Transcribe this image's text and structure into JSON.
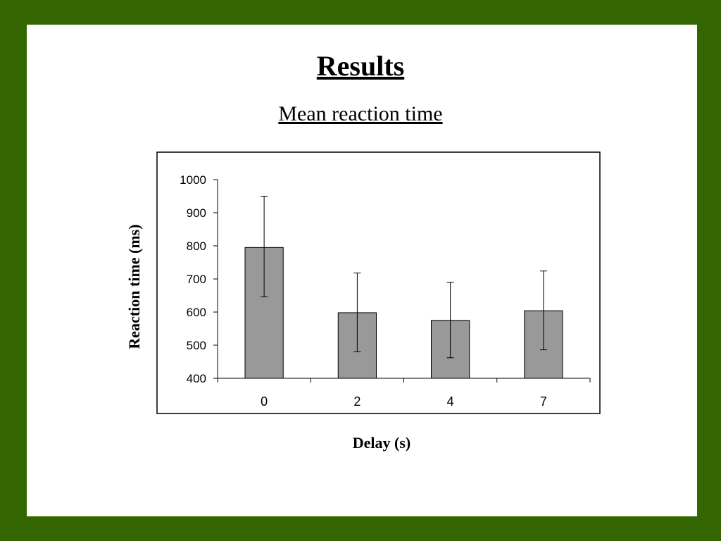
{
  "slide": {
    "title": "Results",
    "subtitle": "Mean reaction time"
  },
  "chart_data": {
    "type": "bar",
    "categories": [
      "0",
      "2",
      "4",
      "7"
    ],
    "values": [
      795,
      598,
      575,
      604
    ],
    "error_upper": [
      950,
      718,
      690,
      724
    ],
    "error_lower": [
      646,
      480,
      462,
      486
    ],
    "xlabel": "Delay (s)",
    "ylabel": "Reaction time (ms)",
    "ylim": [
      400,
      1000
    ],
    "yticks": [
      400,
      500,
      600,
      700,
      800,
      900,
      1000
    ],
    "grid": false,
    "bar_color": "#999999"
  },
  "colors": {
    "background": "#336600",
    "slide": "#ffffff"
  }
}
